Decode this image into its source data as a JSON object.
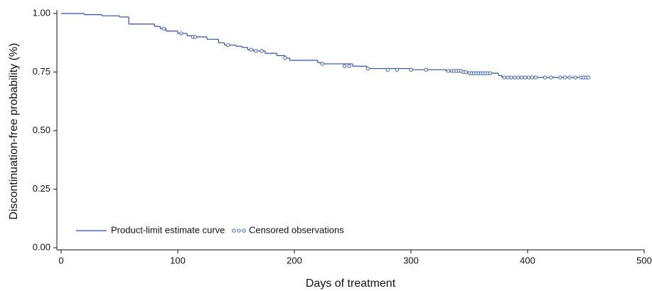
{
  "chart_data": {
    "type": "step",
    "xlabel": "Days of treatment",
    "ylabel": "Discontinuation-free probability (%)",
    "xlim": [
      0,
      500
    ],
    "ylim": [
      0,
      1
    ],
    "xticks": [
      0,
      100,
      200,
      300,
      400,
      500
    ],
    "yticks": [
      {
        "value": 0,
        "label": "0.00"
      },
      {
        "value": 0.25,
        "label": "0.25"
      },
      {
        "value": 0.5,
        "label": "0.50"
      },
      {
        "value": 0.75,
        "label": "0.75"
      },
      {
        "value": 1,
        "label": "1.00"
      }
    ],
    "legend": "lower left",
    "series": [
      {
        "name": "Product-limit estimate curve",
        "color": "#2f4fa3",
        "x": [
          0,
          20,
          35,
          50,
          58,
          80,
          85,
          90,
          100,
          108,
          115,
          125,
          135,
          140,
          150,
          155,
          160,
          165,
          175,
          185,
          192,
          196,
          220,
          225,
          250,
          262,
          300,
          330,
          345,
          360,
          375,
          378,
          452
        ],
        "values": [
          1.0,
          0.995,
          0.99,
          0.985,
          0.955,
          0.945,
          0.935,
          0.925,
          0.915,
          0.905,
          0.9,
          0.89,
          0.875,
          0.865,
          0.86,
          0.855,
          0.845,
          0.84,
          0.83,
          0.82,
          0.81,
          0.8,
          0.79,
          0.785,
          0.775,
          0.765,
          0.76,
          0.755,
          0.75,
          0.745,
          0.735,
          0.727,
          0.727
        ]
      },
      {
        "name": "Censored observations",
        "color": "#2f4fa3",
        "x": [
          88,
          103,
          113,
          115,
          143,
          163,
          167,
          172,
          192,
          224,
          243,
          247,
          263,
          280,
          288,
          300,
          313,
          332,
          335,
          337,
          339,
          341,
          343,
          345,
          347,
          350,
          352,
          354,
          356,
          358,
          360,
          362,
          364,
          366,
          368,
          380,
          383,
          386,
          389,
          392,
          395,
          398,
          401,
          404,
          407,
          415,
          420,
          428,
          432,
          436,
          441,
          446,
          448,
          450,
          452
        ],
        "values": [
          0.935,
          0.915,
          0.9,
          0.9,
          0.865,
          0.845,
          0.84,
          0.84,
          0.81,
          0.785,
          0.775,
          0.775,
          0.765,
          0.76,
          0.76,
          0.76,
          0.76,
          0.755,
          0.755,
          0.755,
          0.755,
          0.755,
          0.755,
          0.75,
          0.75,
          0.745,
          0.745,
          0.745,
          0.745,
          0.745,
          0.745,
          0.745,
          0.745,
          0.745,
          0.745,
          0.727,
          0.727,
          0.727,
          0.727,
          0.727,
          0.727,
          0.727,
          0.727,
          0.727,
          0.727,
          0.727,
          0.727,
          0.727,
          0.727,
          0.727,
          0.727,
          0.727,
          0.727,
          0.727,
          0.727
        ]
      }
    ]
  }
}
